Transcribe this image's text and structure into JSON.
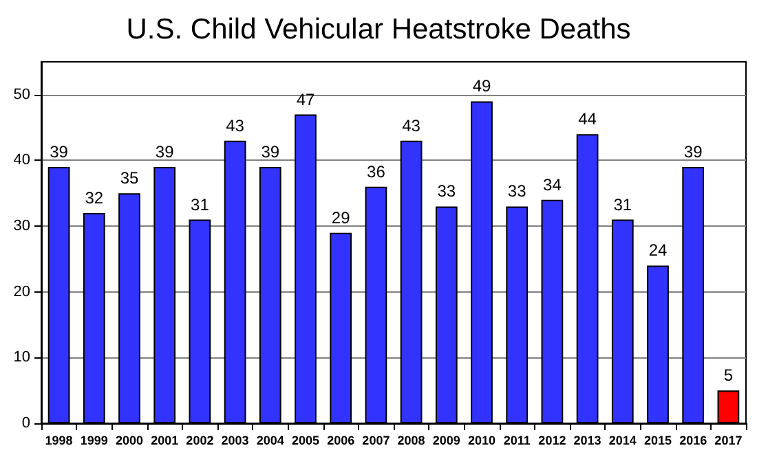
{
  "chart_data": {
    "type": "bar",
    "title": "U.S. Child Vehicular Heatstroke Deaths",
    "categories": [
      "1998",
      "1999",
      "2000",
      "2001",
      "2002",
      "2003",
      "2004",
      "2005",
      "2006",
      "2007",
      "2008",
      "2009",
      "2010",
      "2011",
      "2012",
      "2013",
      "2014",
      "2015",
      "2016",
      "2017"
    ],
    "values": [
      39,
      32,
      35,
      39,
      31,
      43,
      39,
      47,
      29,
      36,
      43,
      33,
      49,
      33,
      34,
      44,
      31,
      24,
      39,
      5
    ],
    "colors": [
      "#3333ff",
      "#3333ff",
      "#3333ff",
      "#3333ff",
      "#3333ff",
      "#3333ff",
      "#3333ff",
      "#3333ff",
      "#3333ff",
      "#3333ff",
      "#3333ff",
      "#3333ff",
      "#3333ff",
      "#3333ff",
      "#3333ff",
      "#3333ff",
      "#3333ff",
      "#3333ff",
      "#3333ff",
      "#ff0000"
    ],
    "ylim": [
      0,
      55
    ],
    "yticks": [
      0,
      10,
      20,
      30,
      40,
      50
    ],
    "grid": "y",
    "data_labels": true
  }
}
